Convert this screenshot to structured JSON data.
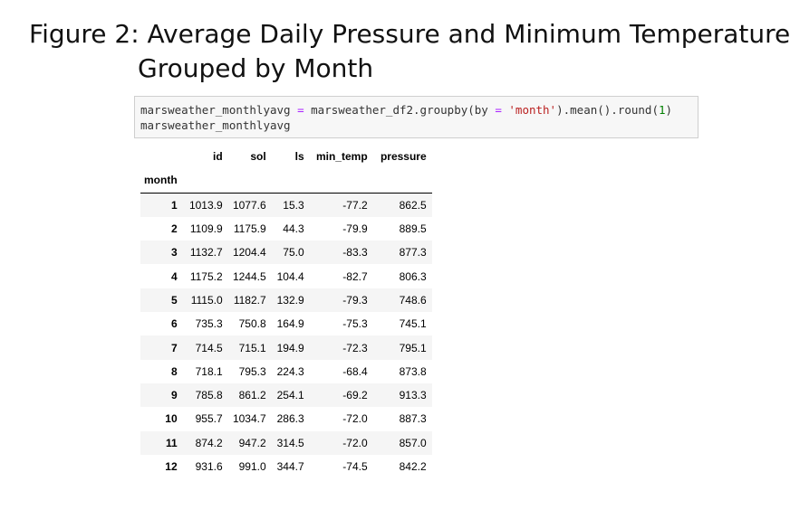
{
  "title": {
    "lines": [
      "Figure 2: Average Daily Pressure and Minimum Temperature",
      "Grouped by Month"
    ]
  },
  "code": {
    "lines": [
      [
        "marsweather_monthlyavg ",
        "=",
        " marsweather_df2.groupby(by ",
        "=",
        " ",
        "'month'",
        ").mean().round(",
        "1",
        ")"
      ],
      [
        "marsweather_monthlyavg"
      ]
    ]
  },
  "table": {
    "columns": [
      "id",
      "sol",
      "ls",
      "min_temp",
      "pressure"
    ],
    "index_name": "month",
    "rows": [
      [
        "1",
        "1013.9",
        "1077.6",
        "15.3",
        "-77.2",
        "862.5"
      ],
      [
        "2",
        "1109.9",
        "1175.9",
        "44.3",
        "-79.9",
        "889.5"
      ],
      [
        "3",
        "1132.7",
        "1204.4",
        "75.0",
        "-83.3",
        "877.3"
      ],
      [
        "4",
        "1175.2",
        "1244.5",
        "104.4",
        "-82.7",
        "806.3"
      ],
      [
        "5",
        "1115.0",
        "1182.7",
        "132.9",
        "-79.3",
        "748.6"
      ],
      [
        "6",
        "735.3",
        "750.8",
        "164.9",
        "-75.3",
        "745.1"
      ],
      [
        "7",
        "714.5",
        "715.1",
        "194.9",
        "-72.3",
        "795.1"
      ],
      [
        "8",
        "718.1",
        "795.3",
        "224.3",
        "-68.4",
        "873.8"
      ],
      [
        "9",
        "785.8",
        "861.2",
        "254.1",
        "-69.2",
        "913.3"
      ],
      [
        "10",
        "955.7",
        "1034.7",
        "286.3",
        "-72.0",
        "887.3"
      ],
      [
        "11",
        "874.2",
        "947.2",
        "314.5",
        "-72.0",
        "857.0"
      ],
      [
        "12",
        "931.6",
        "991.0",
        "344.7",
        "-74.5",
        "842.2"
      ]
    ]
  }
}
